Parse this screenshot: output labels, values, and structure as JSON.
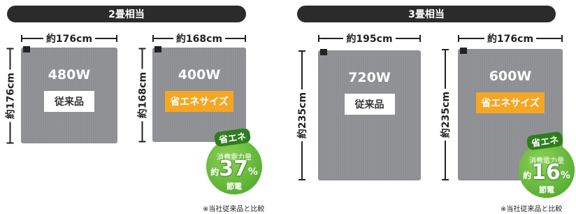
{
  "groups": [
    {
      "title": "2畳相当",
      "products": [
        {
          "width": "約176cm",
          "height": "約176cm",
          "power": "480W",
          "tag": "従来品"
        },
        {
          "width": "約168cm",
          "height": "約168cm",
          "power": "400W",
          "tag": "省エネサイズ"
        }
      ],
      "badge": {
        "title": "省エネ",
        "caption": "消費電力量",
        "prefix": "約",
        "percent": 37,
        "unit": "%",
        "footer": "節電"
      },
      "note": "※当社従来品と比較"
    },
    {
      "title": "3畳相当",
      "products": [
        {
          "width": "約195cm",
          "height": "約235cm",
          "power": "720W",
          "tag": "従来品"
        },
        {
          "width": "約176cm",
          "height": "約235cm",
          "power": "600W",
          "tag": "省エネサイズ"
        }
      ],
      "badge": {
        "title": "省エネ",
        "caption": "消費電力量",
        "prefix": "約",
        "percent": 16,
        "unit": "%",
        "footer": "節電"
      },
      "note": "※当社従来品と比較"
    }
  ]
}
